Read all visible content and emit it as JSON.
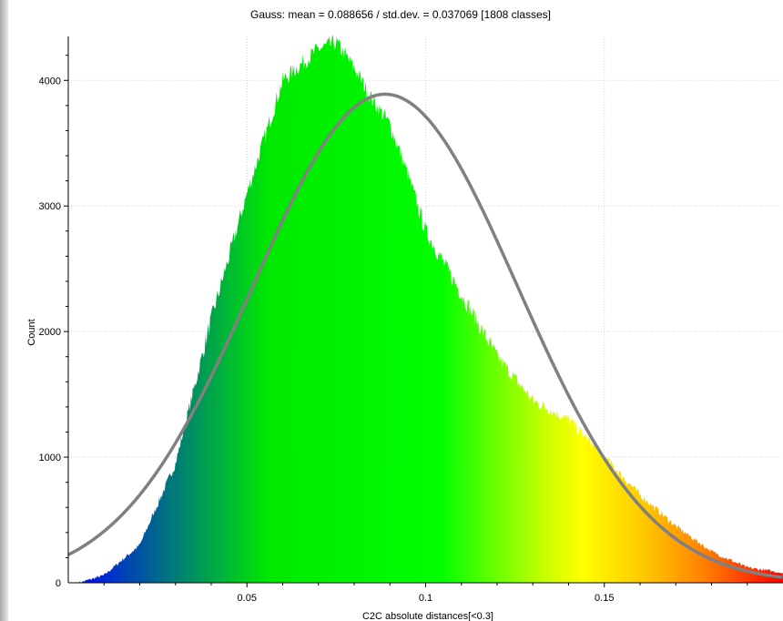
{
  "chart_data": {
    "type": "area",
    "title": "Gauss: mean = 0.088656 / std.dev. = 0.037069 [1808 classes]",
    "xlabel": "C2C absolute distances[<0.3]",
    "ylabel": "Count",
    "xlim": [
      0.0,
      0.2
    ],
    "ylim": [
      0,
      4350
    ],
    "x_ticks": [
      0.05,
      0.1,
      0.15
    ],
    "x_tick_labels": [
      "0.05",
      "0.1",
      "0.15"
    ],
    "y_ticks": [
      0,
      1000,
      2000,
      3000,
      4000
    ],
    "y_tick_labels": [
      "0",
      "1000",
      "2000",
      "3000",
      "4000"
    ],
    "grid": true,
    "series": [
      {
        "kind": "histogram",
        "x": [
          0.003,
          0.01,
          0.02,
          0.03,
          0.04,
          0.05,
          0.06,
          0.07,
          0.075,
          0.08,
          0.085,
          0.09,
          0.095,
          0.1,
          0.11,
          0.12,
          0.13,
          0.14,
          0.15,
          0.16,
          0.17,
          0.18,
          0.19,
          0.2
        ],
        "values": [
          0,
          60,
          300,
          950,
          2100,
          3100,
          4000,
          4250,
          4300,
          4100,
          3850,
          3650,
          3250,
          2800,
          2300,
          1800,
          1450,
          1300,
          1000,
          700,
          450,
          250,
          120,
          80
        ]
      },
      {
        "kind": "gauss-fit",
        "mean": 0.088656,
        "std": 0.037069,
        "peak": 3890,
        "color": "#808080"
      }
    ],
    "colors": {
      "scale": [
        "#0000ff",
        "#00ff00",
        "#ffff00",
        "#ff0000"
      ],
      "curve": "#808080"
    }
  }
}
